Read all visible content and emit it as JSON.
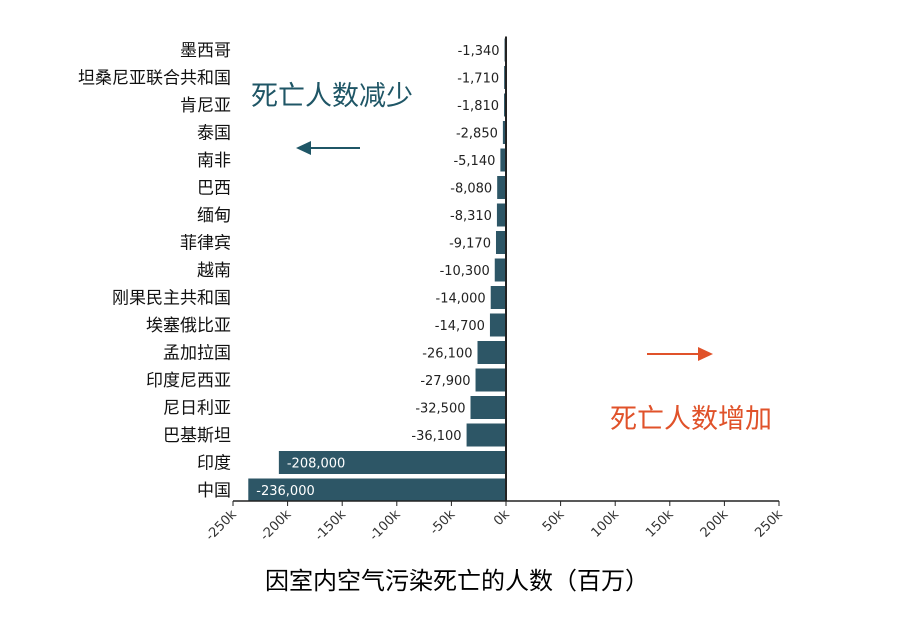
{
  "chart_data": {
    "type": "bar",
    "orientation": "horizontal",
    "categories": [
      "墨西哥",
      "坦桑尼亚联合共和国",
      "肯尼亚",
      "泰国",
      "南非",
      "巴西",
      "缅甸",
      "菲律宾",
      "越南",
      "刚果民主共和国",
      "埃塞俄比亚",
      "孟加拉国",
      "印度尼西亚",
      "尼日利亚",
      "巴基斯坦",
      "印度",
      "中国"
    ],
    "values": [
      -1340,
      -1710,
      -1810,
      -2850,
      -5140,
      -8080,
      -8310,
      -9170,
      -10300,
      -14000,
      -14700,
      -26100,
      -27900,
      -32500,
      -36100,
      -208000,
      -236000
    ],
    "value_labels": [
      "-1,340",
      "-1,710",
      "-1,810",
      "-2,850",
      "-5,140",
      "-8,080",
      "-8,310",
      "-9,170",
      "-10,300",
      "-14,000",
      "-14,700",
      "-26,100",
      "-27,900",
      "-32,500",
      "-36,100",
      "-208,000",
      "-236,000"
    ],
    "xlim": [
      -250000,
      250000
    ],
    "xticks": [
      -250000,
      -200000,
      -150000,
      -100000,
      -50000,
      0,
      50000,
      100000,
      150000,
      200000,
      250000
    ],
    "xtick_labels": [
      "-250k",
      "-200k",
      "-150k",
      "-100k",
      "-50k",
      "0k",
      "50k",
      "100k",
      "150k",
      "200k",
      "250k"
    ],
    "xlabel": "因室内空气污染死亡的人数（百万）",
    "annotations": {
      "decrease": "死亡人数减少",
      "increase": "死亡人数增加"
    },
    "grid": false,
    "colors": {
      "bar": "#2d5666",
      "decrease": "#1f5666",
      "increase": "#e0522a",
      "axis": "#222222"
    }
  }
}
